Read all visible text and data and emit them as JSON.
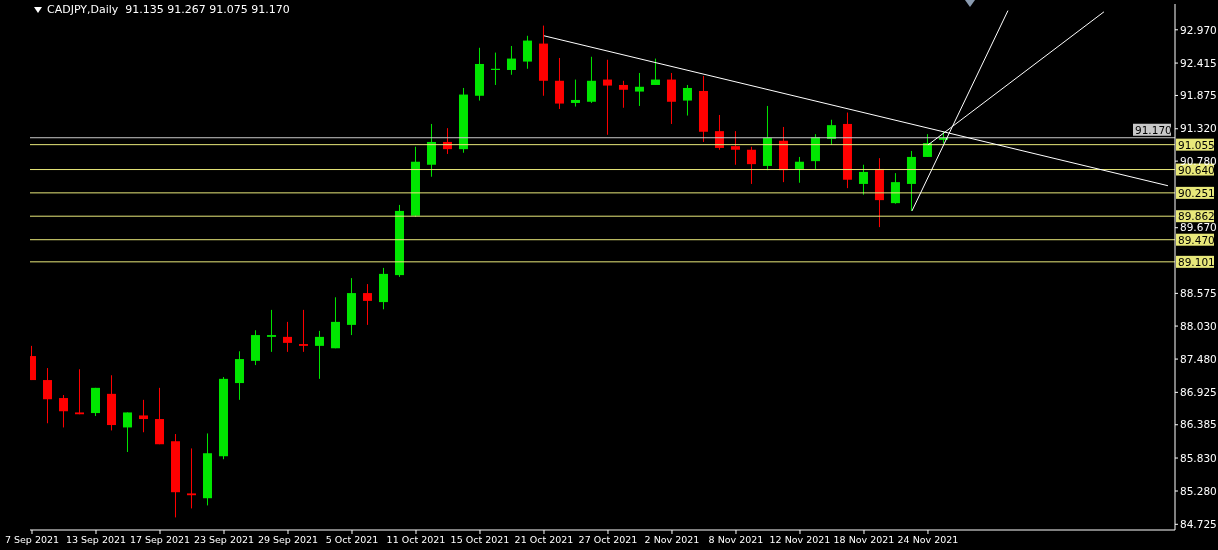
{
  "chart_data": {
    "type": "candlestick",
    "title": "CADJPY,Daily  91.135 91.267 91.075 91.170",
    "categories": [
      "7 Sep 2021",
      null,
      null,
      null,
      "13 Sep 2021",
      null,
      null,
      null,
      "17 Sep 2021",
      null,
      null,
      null,
      "23 Sep 2021",
      null,
      null,
      null,
      "29 Sep 2021",
      null,
      null,
      null,
      "5 Oct 2021",
      null,
      null,
      null,
      "11 Oct 2021",
      null,
      null,
      null,
      "15 Oct 2021",
      null,
      null,
      null,
      "21 Oct 2021",
      null,
      null,
      null,
      "27 Oct 2021",
      null,
      null,
      null,
      "2 Nov 2021",
      null,
      null,
      null,
      "8 Nov 2021",
      null,
      null,
      null,
      "12 Nov 2021",
      null,
      null,
      null,
      "18 Nov 2021",
      null,
      null,
      null,
      "24 Nov 2021",
      null,
      null,
      null,
      null,
      null,
      null,
      null,
      null,
      null,
      null,
      null,
      null,
      null,
      null,
      null
    ],
    "ohlc": [
      [
        87.53,
        87.7,
        87.13,
        87.13
      ],
      [
        87.13,
        87.33,
        86.41,
        86.81
      ],
      [
        86.83,
        86.88,
        86.34,
        86.61
      ],
      [
        86.59,
        87.31,
        86.56,
        86.56
      ],
      [
        86.58,
        87.0,
        86.53,
        87.0
      ],
      [
        86.9,
        87.21,
        86.29,
        86.38
      ],
      [
        86.34,
        86.59,
        85.93,
        86.59
      ],
      [
        86.54,
        86.8,
        86.26,
        86.48
      ],
      [
        86.48,
        87.0,
        86.06,
        86.06
      ],
      [
        86.11,
        86.23,
        84.84,
        85.26
      ],
      [
        85.24,
        85.99,
        84.99,
        85.21
      ],
      [
        85.16,
        86.24,
        85.04,
        85.91
      ],
      [
        85.86,
        87.18,
        85.81,
        87.15
      ],
      [
        87.08,
        87.61,
        86.8,
        87.48
      ],
      [
        87.45,
        87.96,
        87.38,
        87.88
      ],
      [
        87.85,
        88.3,
        87.6,
        87.88
      ],
      [
        87.85,
        88.1,
        87.6,
        87.75
      ],
      [
        87.73,
        88.3,
        87.6,
        87.7
      ],
      [
        87.7,
        87.95,
        87.15,
        87.85
      ],
      [
        87.66,
        88.51,
        87.66,
        88.1
      ],
      [
        88.05,
        88.83,
        87.88,
        88.58
      ],
      [
        88.58,
        88.73,
        88.05,
        88.45
      ],
      [
        88.43,
        89.0,
        88.31,
        88.9
      ],
      [
        88.88,
        90.05,
        88.85,
        89.95
      ],
      [
        89.87,
        91.02,
        89.85,
        90.77
      ],
      [
        90.72,
        91.4,
        90.52,
        91.1
      ],
      [
        91.1,
        91.33,
        90.9,
        90.98
      ],
      [
        90.98,
        92.0,
        90.92,
        91.89
      ],
      [
        91.87,
        92.67,
        91.79,
        92.4
      ],
      [
        92.3,
        92.59,
        92.05,
        92.32
      ],
      [
        92.3,
        92.7,
        92.22,
        92.49
      ],
      [
        92.44,
        92.87,
        92.32,
        92.79
      ],
      [
        92.74,
        93.04,
        91.87,
        92.12
      ],
      [
        92.12,
        92.5,
        91.65,
        91.74
      ],
      [
        91.75,
        92.14,
        91.69,
        91.8
      ],
      [
        91.77,
        92.52,
        91.75,
        92.12
      ],
      [
        92.14,
        92.47,
        91.22,
        92.04
      ],
      [
        92.05,
        92.12,
        91.67,
        91.97
      ],
      [
        91.94,
        92.25,
        91.7,
        92.02
      ],
      [
        92.05,
        92.49,
        92.05,
        92.14
      ],
      [
        92.14,
        92.25,
        91.4,
        91.77
      ],
      [
        91.79,
        92.05,
        91.54,
        92.0
      ],
      [
        91.95,
        92.2,
        91.1,
        91.27
      ],
      [
        91.28,
        91.55,
        90.97,
        91.0
      ],
      [
        91.03,
        91.28,
        90.72,
        90.97
      ],
      [
        90.97,
        91.02,
        90.4,
        90.73
      ],
      [
        90.7,
        91.7,
        90.63,
        91.17
      ],
      [
        91.12,
        91.35,
        90.43,
        90.63
      ],
      [
        90.65,
        90.85,
        90.42,
        90.77
      ],
      [
        90.78,
        91.23,
        90.65,
        91.18
      ],
      [
        91.15,
        91.47,
        91.05,
        91.38
      ],
      [
        91.4,
        91.59,
        90.33,
        90.47
      ],
      [
        90.4,
        90.72,
        90.22,
        90.6
      ],
      [
        90.65,
        90.83,
        89.68,
        90.13
      ],
      [
        90.08,
        90.58,
        90.07,
        90.43
      ],
      [
        90.4,
        90.95,
        89.95,
        90.85
      ],
      [
        90.85,
        91.23,
        90.85,
        91.08
      ],
      [
        91.135,
        91.267,
        91.075,
        91.17
      ],
      null,
      null,
      null,
      null,
      null,
      null,
      null,
      null,
      null,
      null,
      null,
      null,
      null,
      null
    ],
    "colors": [
      "#ff0000",
      "#ff0000",
      "#ff0000",
      "#ff0000",
      "#00e600",
      "#ff0000",
      "#00e600",
      "#ff0000",
      "#ff0000",
      "#ff0000",
      "#ff0000",
      "#00e600",
      "#00e600",
      "#00e600",
      "#00e600",
      "#00e600",
      "#ff0000",
      "#ff0000",
      "#00e600",
      "#00e600",
      "#00e600",
      "#ff0000",
      "#00e600",
      "#00e600",
      "#00e600",
      "#00e600",
      "#ff0000",
      "#00e600",
      "#00e600",
      "#00e600",
      "#00e600",
      "#00e600",
      "#ff0000",
      "#ff0000",
      "#00e600",
      "#00e600",
      "#ff0000",
      "#ff0000",
      "#00e600",
      "#00e600",
      "#ff0000",
      "#00e600",
      "#ff0000",
      "#ff0000",
      "#ff0000",
      "#ff0000",
      "#00e600",
      "#ff0000",
      "#00e600",
      "#00e600",
      "#00e600",
      "#ff0000",
      "#00e600",
      "#ff0000",
      "#00e600",
      "#00e600",
      "#00e600",
      "#00e600",
      null,
      null,
      null,
      null,
      null,
      null,
      null,
      null,
      null,
      null,
      null,
      null,
      null,
      null
    ],
    "series": [
      {
        "type": "line",
        "color": "#ffffff",
        "values": [
          null,
          null,
          null,
          null,
          null,
          null,
          null,
          null,
          null,
          null,
          null,
          null,
          null,
          null,
          null,
          null,
          null,
          null,
          null,
          null,
          null,
          null,
          null,
          null,
          null,
          null,
          null,
          null,
          null,
          null,
          null,
          null,
          92.87,
          null,
          null,
          null,
          null,
          null,
          null,
          null,
          null,
          null,
          null,
          null,
          null,
          null,
          null,
          null,
          null,
          null,
          null,
          null,
          null,
          null,
          null,
          null,
          null,
          null,
          null,
          null,
          null,
          null,
          null,
          null,
          null,
          null,
          null,
          null,
          null,
          null,
          null,
          90.37
        ]
      },
      {
        "type": "line",
        "color": "#ffffff",
        "values": [
          null,
          null,
          null,
          null,
          null,
          null,
          null,
          null,
          null,
          null,
          null,
          null,
          null,
          null,
          null,
          null,
          null,
          null,
          null,
          null,
          null,
          null,
          null,
          null,
          null,
          null,
          null,
          null,
          null,
          null,
          null,
          null,
          null,
          null,
          null,
          null,
          null,
          null,
          null,
          null,
          null,
          null,
          null,
          null,
          null,
          null,
          null,
          null,
          null,
          null,
          null,
          null,
          null,
          null,
          null,
          89.95,
          null,
          null,
          null,
          null,
          null,
          93.29,
          null,
          null,
          null,
          null,
          null,
          null,
          null,
          null,
          null,
          null
        ]
      },
      {
        "type": "line",
        "color": "#ffffff",
        "values": [
          null,
          null,
          null,
          null,
          null,
          null,
          null,
          null,
          null,
          null,
          null,
          null,
          null,
          null,
          null,
          null,
          null,
          null,
          null,
          null,
          null,
          null,
          null,
          null,
          null,
          null,
          null,
          null,
          null,
          null,
          null,
          null,
          null,
          null,
          null,
          null,
          null,
          null,
          null,
          null,
          null,
          null,
          null,
          null,
          null,
          null,
          null,
          null,
          null,
          null,
          null,
          null,
          null,
          null,
          null,
          null,
          91.05,
          null,
          null,
          null,
          null,
          null,
          null,
          null,
          null,
          null,
          null,
          93.27,
          null,
          null,
          null,
          null
        ]
      }
    ],
    "ref_lines": [
      {
        "axis": "y",
        "value": 91.17,
        "label": "91.170",
        "color": "#c8c8c8"
      },
      {
        "axis": "y",
        "value": 91.055,
        "label": "91.055",
        "color": "#e8e87a"
      },
      {
        "axis": "y",
        "value": 90.64,
        "label": "90.640",
        "color": "#e8e87a"
      },
      {
        "axis": "y",
        "value": 90.251,
        "label": "90.251",
        "color": "#e8e87a"
      },
      {
        "axis": "y",
        "value": 89.862,
        "label": "89.862",
        "color": "#e8e87a"
      },
      {
        "axis": "y",
        "value": 89.47,
        "label": "89.470",
        "color": "#e8e87a"
      },
      {
        "axis": "y",
        "value": 89.101,
        "label": "89.101",
        "color": "#e8e87a"
      }
    ],
    "ylim": [
      84.63,
      93.4
    ],
    "yticks": [
      84.725,
      {
        "value": 85.28,
        "label": "85.280"
      },
      {
        "value": 85.83,
        "label": "85.830"
      },
      86.385,
      86.925,
      {
        "value": 87.48,
        "label": "87.480"
      },
      {
        "value": 88.03,
        "label": "88.030"
      },
      88.575,
      {
        "value": 89.67,
        "label": "89.670"
      },
      {
        "value": 90.78,
        "label": "90.780"
      },
      {
        "value": 91.32,
        "label": "91.320"
      },
      91.875,
      92.415,
      {
        "value": 92.97,
        "label": "92.970"
      }
    ]
  }
}
